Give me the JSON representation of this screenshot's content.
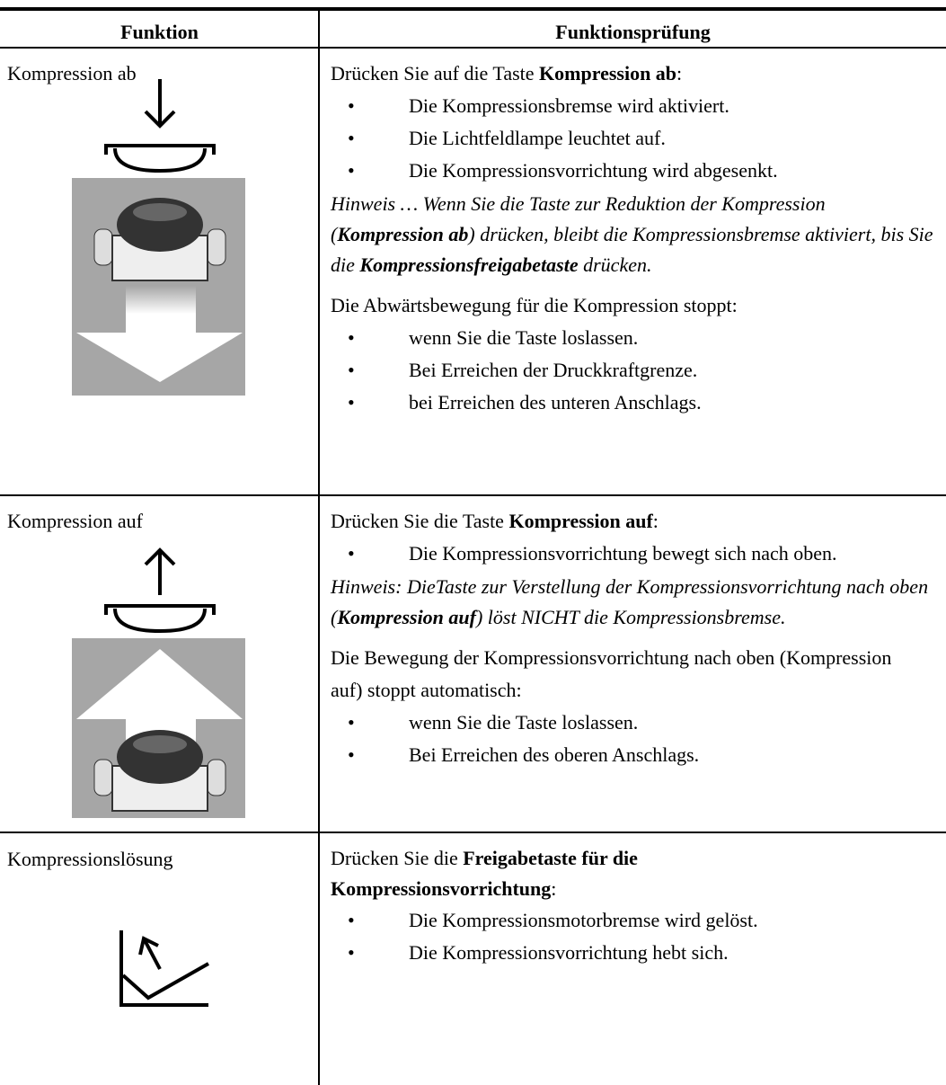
{
  "header": {
    "columns": [
      "Funktion",
      "Funktionsprüfung"
    ]
  },
  "rows": [
    {
      "function": "Kompression ab",
      "intro": [
        "Drücken Sie auf die Taste ",
        "Kompression ab",
        ":"
      ],
      "bullets": [
        "Die Kompressionsbremse wird aktiviert.",
        "Die Lichtfeldlampe leuchtet auf.",
        "Die Kompressionsvorrichtung wird abgesenkt."
      ],
      "note": [
        "Hinweis … Wenn Sie die Taste zur Reduktion der Kompression (",
        "Kompression ab",
        ") drücken, bleibt die Kompressionsbremse aktiviert, bis Sie die ",
        "Kompressionsfreigabetaste",
        " drücken."
      ],
      "paragraph": "Die Abwärtsbewegung für die Kompression stoppt:",
      "bullets2": [
        "wenn Sie die Taste loslassen.",
        "Bei Erreichen der Druckkraftgrenze.",
        "bei Erreichen des unteren Anschlags."
      ]
    },
    {
      "function": "Kompression auf",
      "intro": [
        "Drücken Sie die Taste ",
        "Kompression auf",
        ":"
      ],
      "bullets": [
        "Die Kompressionsvorrichtung bewegt sich nach oben."
      ],
      "note": [
        "Hinweis: DieTaste zur Verstellung der Kompressionsvorrichtung nach oben (",
        "Kompression auf",
        ") löst NICHT die Kompressionsbremse."
      ],
      "paragraph": "Die Bewegung der Kompressionsvorrichtung nach oben (Kompression auf) stoppt automatisch:",
      "bullets2": [
        "wenn Sie die Taste loslassen.",
        "Bei Erreichen des oberen Anschlags."
      ]
    },
    {
      "function": "Kompressionslösung",
      "intro": [
        "Drücken Sie die ",
        "Freigabetaste für die Kompressionsvorrichtung",
        ":"
      ],
      "bullets": [
        "Die Kompressionsmotorbremse wird gelöst.",
        "Die Kompressionsvorrichtung hebt sich."
      ]
    }
  ]
}
